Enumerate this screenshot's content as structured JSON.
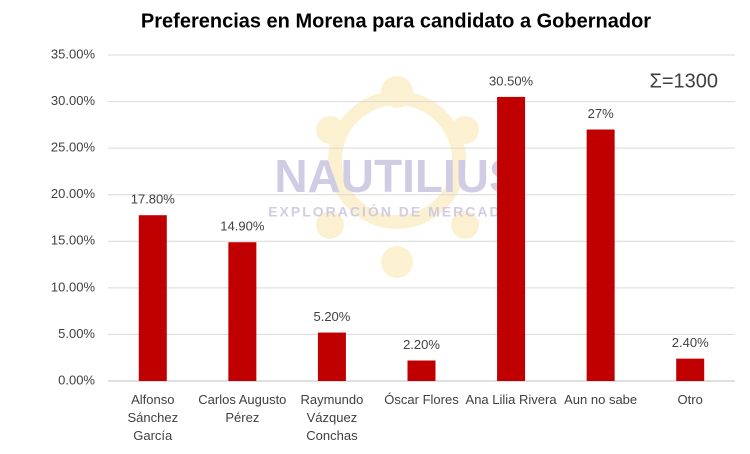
{
  "chart_data": {
    "type": "bar",
    "title": "Preferencias en Morena para candidato a Gobernador",
    "categories": [
      "Alfonso Sánchez García",
      "Carlos Augusto Pérez",
      "Raymundo Vázquez Conchas",
      "Óscar Flores",
      "Ana Lilia Rivera",
      "Aun no sabe",
      "Otro"
    ],
    "values": [
      17.8,
      14.9,
      5.2,
      2.2,
      30.5,
      27,
      2.4
    ],
    "value_labels": [
      "17.80%",
      "14.90%",
      "5.20%",
      "2.20%",
      "30.50%",
      "27%",
      "2.40%"
    ],
    "color": "#c00000",
    "ylim": [
      0,
      35
    ],
    "yticks": [
      {
        "value": 0,
        "label": "0.00%"
      },
      {
        "value": 5,
        "label": "5.00%"
      },
      {
        "value": 10,
        "label": "10.00%"
      },
      {
        "value": 15,
        "label": "15.00%"
      },
      {
        "value": 20,
        "label": "20.00%"
      },
      {
        "value": 25,
        "label": "25.00%"
      },
      {
        "value": 30,
        "label": "30.00%"
      },
      {
        "value": 35,
        "label": "35.00%"
      }
    ],
    "grid": true,
    "annotation": "Σ=1300",
    "watermark": {
      "title": "NAUTILIUS",
      "subtitle": "EXPLORACIÓN DE MERCADOS"
    }
  }
}
